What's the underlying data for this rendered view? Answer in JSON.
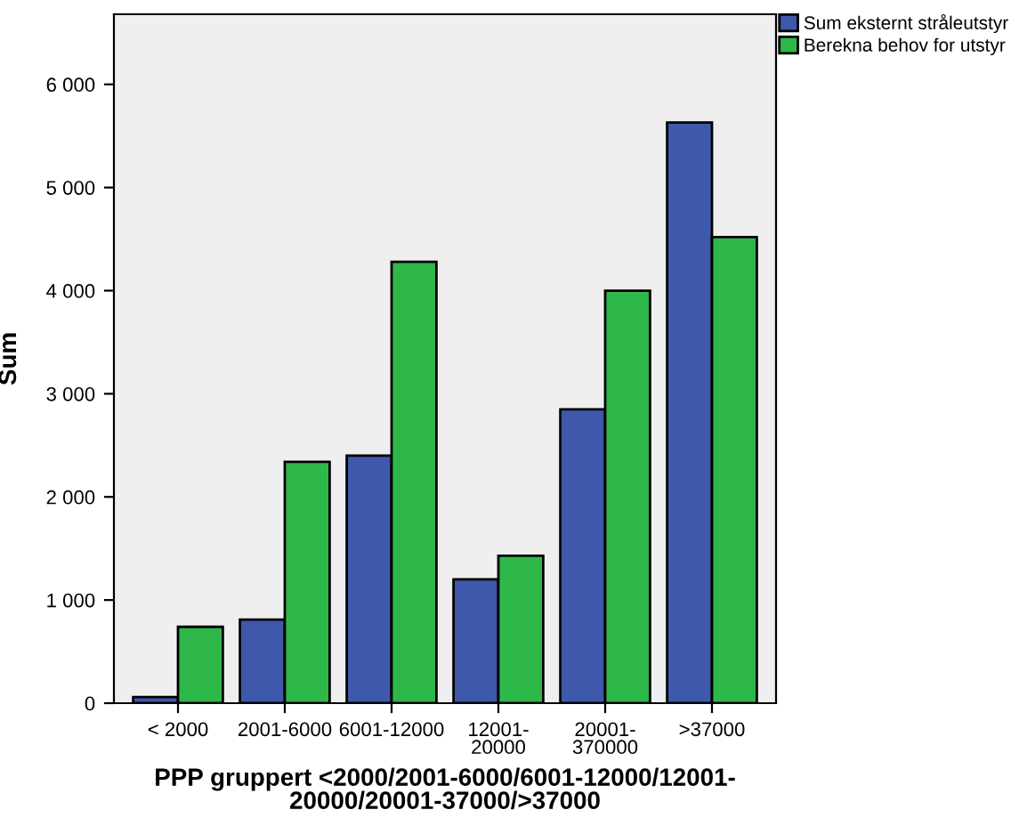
{
  "chart_data": {
    "type": "bar",
    "categories": [
      "< 2000",
      "2001-6000",
      "6001-12000",
      "12001-\n20000",
      "20001-\n370000",
      ">37000"
    ],
    "series": [
      {
        "name": "Sum eksternt stråleutstyr",
        "color": "#3e58ac",
        "values": [
          60,
          810,
          2400,
          1200,
          2850,
          5630
        ]
      },
      {
        "name": "Berekna behov for utstyr",
        "color": "#2fb84a",
        "values": [
          740,
          2340,
          4280,
          1430,
          4000,
          4520
        ]
      }
    ],
    "xlabel": "PPP gruppert <2000/2001-6000/6001-12000/12001-\n20000/20001-37000/>37000",
    "ylabel": "Sum",
    "ylim": [
      0,
      6680
    ],
    "yticks": [
      {
        "value": 0,
        "label": "0"
      },
      {
        "value": 1000,
        "label": "1 000"
      },
      {
        "value": 2000,
        "label": "2 000"
      },
      {
        "value": 3000,
        "label": "3 000"
      },
      {
        "value": 4000,
        "label": "4 000"
      },
      {
        "value": 5000,
        "label": "5 000"
      },
      {
        "value": 6000,
        "label": "6 000"
      }
    ],
    "grid": false,
    "legend": "right"
  }
}
